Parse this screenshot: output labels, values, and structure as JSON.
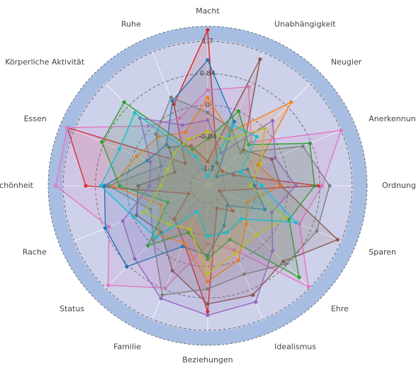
{
  "chart_data": {
    "type": "radar",
    "categories": [
      "Macht",
      "Unabhängigkeit",
      "Neugier",
      "Anerkennung",
      "Ordnung",
      "Sparen",
      "Ehre",
      "Idealismus",
      "Beziehungen",
      "Familie",
      "Status",
      "Rache",
      "Schönheit",
      "Essen",
      "Körperliche Aktivität",
      "Ruhe"
    ],
    "rlim": [
      -2.15,
      2.1
    ],
    "rticks": [
      -1.7,
      -0.84,
      0,
      0.84,
      1.7
    ],
    "grid": true,
    "series": [
      {
        "color": "#d62728",
        "values": [
          2.0,
          -1.5,
          -1.6,
          -1.4,
          0.8,
          -1.8,
          -1.2,
          -1.5,
          1.2,
          -0.5,
          -0.9,
          -1.6,
          1.1,
          1.9,
          -1.3,
          0.2
        ]
      },
      {
        "color": "#e377c2",
        "values": [
          0.4,
          0.7,
          -0.5,
          1.7,
          0.9,
          0.5,
          1.65,
          -0.3,
          -0.6,
          0.8,
          1.6,
          0.7,
          1.9,
          1.9,
          0.1,
          -0.2
        ]
      },
      {
        "color": "#8c564b",
        "values": [
          -1.5,
          1.5,
          -0.8,
          -0.3,
          -0.2,
          1.6,
          0.7,
          1.0,
          1.0,
          0.3,
          -0.4,
          -0.1,
          -0.3,
          -1.2,
          -0.7,
          -1.0
        ]
      },
      {
        "color": "#1f77b4",
        "values": [
          1.2,
          -0.3,
          -1.8,
          -1.0,
          -0.9,
          -0.5,
          -1.4,
          -1.0,
          -0.3,
          -0.4,
          0.9,
          0.8,
          0.6,
          -0.4,
          -0.6,
          0.3
        ]
      },
      {
        "color": "#ff7f0e",
        "values": [
          0.2,
          -0.6,
          1.0,
          -0.7,
          -0.2,
          -1.0,
          -0.7,
          0.0,
          0.4,
          -0.5,
          -0.3,
          -0.8,
          0.4,
          -0.1,
          -0.3,
          -0.6
        ]
      },
      {
        "color": "#2ca02c",
        "values": [
          -0.9,
          0.0,
          -0.6,
          0.8,
          0.7,
          0.2,
          1.3,
          -0.6,
          -0.2,
          -0.8,
          0.1,
          -1.0,
          0.2,
          0.9,
          1.0,
          -1.1
        ]
      },
      {
        "color": "#9467bd",
        "values": [
          -0.4,
          -1.2,
          0.3,
          -0.2,
          0.2,
          -0.3,
          0.3,
          1.2,
          1.3,
          1.1,
          0.6,
          0.3,
          -0.6,
          -0.5,
          0.4,
          -0.4
        ]
      },
      {
        "color": "#7f7f7f",
        "values": [
          -0.2,
          -0.5,
          -0.9,
          0.6,
          1.1,
          1.0,
          0.8,
          0.4,
          0.6,
          1.0,
          -0.1,
          -0.5,
          0.5,
          -0.8,
          -0.2,
          0.4
        ]
      },
      {
        "color": "#bcbd22",
        "values": [
          -0.7,
          -0.8,
          0.0,
          -0.6,
          -1.0,
          0.1,
          -0.3,
          -0.2,
          0.2,
          -0.9,
          -0.7,
          -0.3,
          -0.9,
          -1.0,
          -0.9,
          -0.8
        ]
      },
      {
        "color": "#17becf",
        "values": [
          -1.9,
          -0.4,
          -0.3,
          -1.2,
          -0.7,
          0.4,
          -0.9,
          -0.8,
          -0.8,
          -1.4,
          -0.2,
          0.0,
          0.7,
          0.4,
          0.6,
          -1.3
        ]
      }
    ]
  }
}
